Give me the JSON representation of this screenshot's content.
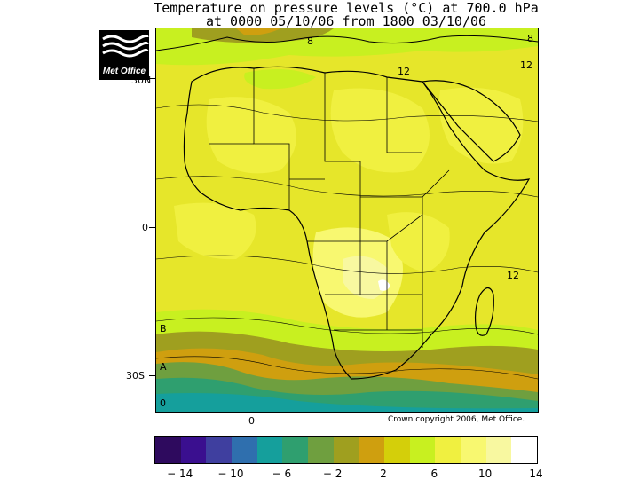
{
  "title_line1": "Temperature on pressure levels (°C) at 700.0 hPa",
  "title_line2": "at 0000 05/10/06 from 1800 03/10/06",
  "logo_text": "Met Office",
  "lat_labels": [
    "30N",
    "0",
    "30S"
  ],
  "lon_label": "0",
  "copyright": "Crown copyright 2006, Met Office.",
  "contour_labels": [
    "12",
    "12",
    "12",
    "8",
    "8",
    "B",
    "A",
    "0"
  ],
  "colorbar": {
    "colors": [
      "#2e0a5e",
      "#3a0f8f",
      "#3f3f9f",
      "#2f6fae",
      "#159f9c",
      "#2f9f6f",
      "#6f9f3f",
      "#9f9f1f",
      "#cf9f0f",
      "#d4cf0a",
      "#c8f020",
      "#f0f040",
      "#f8f870",
      "#f8f8a0",
      "#ffffff"
    ],
    "labels": [
      "-14",
      "-10",
      "-6",
      "-2",
      "2",
      "6",
      "10",
      "14"
    ]
  }
}
